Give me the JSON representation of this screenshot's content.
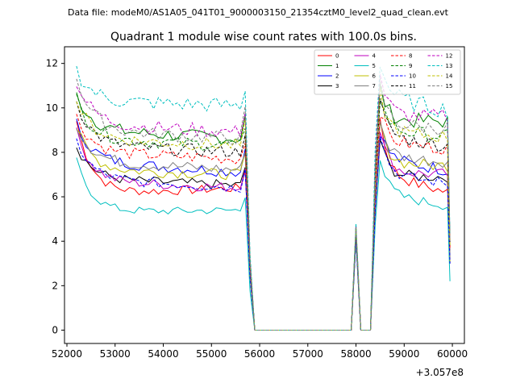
{
  "header": {
    "data_file": "Data file: modeM0/AS1A05_041T01_9000003150_21354cztM0_level2_quad_clean.evt"
  },
  "chart_data": {
    "type": "line",
    "title": "Quadrant 1 module wise count rates with 100.0s bins.",
    "xlabel": "",
    "ylabel": "",
    "x_offset_label": "+3.057e8",
    "xlim": [
      51950,
      60250
    ],
    "ylim": [
      -0.6,
      12.75
    ],
    "xticks": [
      52000,
      53000,
      54000,
      55000,
      56000,
      57000,
      58000,
      59000,
      60000
    ],
    "xtick_labels": [
      "52000",
      "53000",
      "54000",
      "55000",
      "56000",
      "57000",
      "58000",
      "59000",
      "60000"
    ],
    "yticks": [
      0,
      2,
      4,
      6,
      8,
      10,
      12
    ],
    "ytick_labels": [
      "0",
      "2",
      "4",
      "6",
      "8",
      "10",
      "12"
    ],
    "legend_position": "top-right",
    "segment1": {
      "start": 52200,
      "end": 55700,
      "step": 100
    },
    "segment2": {
      "start": 58500,
      "end": 59900,
      "step": 100
    },
    "gap_points": [
      [
        55800,
        "drop"
      ],
      [
        55900,
        0
      ],
      [
        57800,
        0
      ],
      [
        57900,
        0
      ],
      [
        58000,
        "spike"
      ],
      [
        58100,
        0
      ],
      [
        58300,
        0
      ],
      [
        58400,
        "rise"
      ]
    ],
    "series": [
      {
        "name": "0",
        "color": "#ff0000",
        "dash": false,
        "start": 9.4,
        "level": 6.1,
        "tail": 6.4,
        "peak2": 9.5,
        "level2": 7.0,
        "end2": 6.2,
        "spike": 4.1,
        "final": 3.6
      },
      {
        "name": "1",
        "color": "#008000",
        "dash": false,
        "start": 10.6,
        "level": 9.0,
        "tail": 8.6,
        "peak2": 10.9,
        "level2": 9.4,
        "end2": 9.4,
        "spike": 4.7,
        "final": 3.8
      },
      {
        "name": "2",
        "color": "#0000ff",
        "dash": false,
        "start": 9.3,
        "level": 7.6,
        "tail": 7.1,
        "peak2": 9.0,
        "level2": 7.7,
        "end2": 7.2,
        "spike": 4.3,
        "final": 3.4
      },
      {
        "name": "3",
        "color": "#000000",
        "dash": false,
        "start": 8.3,
        "level": 6.8,
        "tail": 6.5,
        "peak2": 8.6,
        "level2": 6.9,
        "end2": 6.9,
        "spike": 4.2,
        "final": 3.0
      },
      {
        "name": "4",
        "color": "#bf00bf",
        "dash": false,
        "start": 8.9,
        "level": 6.7,
        "tail": 6.4,
        "peak2": 9.1,
        "level2": 7.1,
        "end2": 7.0,
        "spike": 4.2,
        "final": 3.2
      },
      {
        "name": "5",
        "color": "#00bfbf",
        "dash": false,
        "start": 7.6,
        "level": 5.3,
        "tail": 5.4,
        "peak2": 7.8,
        "level2": 6.1,
        "end2": 5.6,
        "spike": 4.0,
        "final": 2.2
      },
      {
        "name": "6",
        "color": "#bfbf00",
        "dash": false,
        "start": 9.1,
        "level": 7.2,
        "tail": 7.0,
        "peak2": 9.3,
        "level2": 7.5,
        "end2": 7.4,
        "spike": 4.3,
        "final": 3.1
      },
      {
        "name": "7",
        "color": "#808080",
        "dash": false,
        "start": 9.2,
        "level": 7.6,
        "tail": 7.2,
        "peak2": 9.4,
        "level2": 7.8,
        "end2": 7.6,
        "spike": 4.2,
        "final": 3.3
      },
      {
        "name": "8",
        "color": "#ff0000",
        "dash": true,
        "start": 9.6,
        "level": 8.0,
        "tail": 7.7,
        "peak2": 9.9,
        "level2": 8.4,
        "end2": 8.2,
        "spike": 4.5,
        "final": 3.7
      },
      {
        "name": "9",
        "color": "#008000",
        "dash": true,
        "start": 10.4,
        "level": 8.6,
        "tail": 8.3,
        "peak2": 10.5,
        "level2": 9.0,
        "end2": 8.7,
        "spike": 4.6,
        "final": 4.0
      },
      {
        "name": "10",
        "color": "#0000ff",
        "dash": true,
        "start": 8.5,
        "level": 6.8,
        "tail": 6.4,
        "peak2": 8.9,
        "level2": 7.0,
        "end2": 6.6,
        "spike": 4.1,
        "final": 3.0
      },
      {
        "name": "11",
        "color": "#000000",
        "dash": true,
        "start": 10.3,
        "level": 8.3,
        "tail": 8.0,
        "peak2": 10.2,
        "level2": 8.7,
        "end2": 8.3,
        "spike": 4.5,
        "final": 3.9
      },
      {
        "name": "12",
        "color": "#bf00bf",
        "dash": true,
        "start": 11.2,
        "level": 9.3,
        "tail": 8.9,
        "peak2": 11.5,
        "level2": 9.6,
        "end2": 9.6,
        "spike": 4.7,
        "final": 4.0
      },
      {
        "name": "13",
        "color": "#00bfbf",
        "dash": true,
        "start": 11.7,
        "level": 10.3,
        "tail": 10.1,
        "peak2": 12.1,
        "level2": 10.5,
        "end2": 9.9,
        "spike": 4.8,
        "final": 4.3
      },
      {
        "name": "14",
        "color": "#bfbf00",
        "dash": true,
        "start": 10.3,
        "level": 8.6,
        "tail": 8.3,
        "peak2": 10.6,
        "level2": 8.9,
        "end2": 8.7,
        "spike": 4.6,
        "final": 3.8
      },
      {
        "name": "15",
        "color": "#808080",
        "dash": true,
        "start": 11.4,
        "level": 9.0,
        "tail": 8.6,
        "peak2": 11.1,
        "level2": 9.2,
        "end2": 9.1,
        "spike": 4.6,
        "final": 4.0
      }
    ]
  }
}
